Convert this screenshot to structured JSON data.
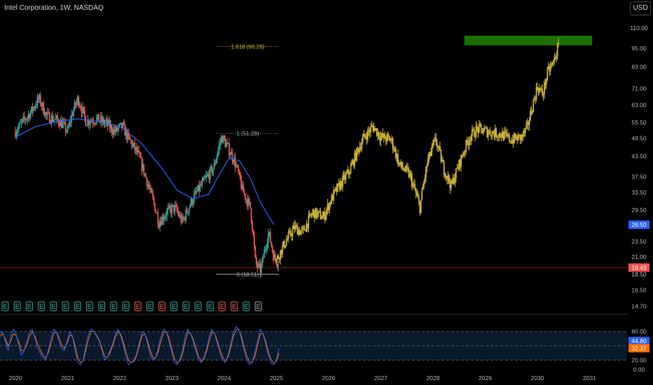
{
  "header": {
    "title": "Intel Corporation, 1W, NASDAQ",
    "currency": "USD"
  },
  "colors": {
    "up": "#26a69a",
    "down": "#ef5350",
    "projection": "#c9b037",
    "ma": "#2962ff",
    "target_zone": "#1b6f00",
    "fib": "#c9b037",
    "support": "#7a1f1f",
    "stoch_k": "#2962ff",
    "stoch_d": "#ff6d00"
  },
  "chart_data": [
    {
      "type": "candlestick",
      "x_axis": [
        "2020",
        "2021",
        "2022",
        "2023",
        "2024",
        "2025",
        "2026",
        "2027",
        "2028",
        "2029",
        "2030",
        "2031"
      ],
      "y_axis": [
        "110.00",
        "95.00",
        "83.00",
        "71.00",
        "63.00",
        "55.50",
        "49.50",
        "43.50",
        "37.50",
        "33.50",
        "29.50",
        "23.50",
        "21.00",
        "18.50",
        "16.50",
        "14.70"
      ],
      "y_scale": "log",
      "historical_path": [
        [
          2020.0,
          52
        ],
        [
          2020.3,
          60
        ],
        [
          2020.45,
          66
        ],
        [
          2020.6,
          58
        ],
        [
          2020.85,
          56
        ],
        [
          2021.0,
          52
        ],
        [
          2021.1,
          60
        ],
        [
          2021.2,
          66
        ],
        [
          2021.35,
          56
        ],
        [
          2021.55,
          57
        ],
        [
          2021.75,
          55
        ],
        [
          2021.9,
          52
        ],
        [
          2022.05,
          54
        ],
        [
          2022.15,
          50
        ],
        [
          2022.35,
          44
        ],
        [
          2022.55,
          35
        ],
        [
          2022.75,
          27
        ],
        [
          2022.9,
          29
        ],
        [
          2023.05,
          30
        ],
        [
          2023.2,
          27
        ],
        [
          2023.4,
          32
        ],
        [
          2023.55,
          35
        ],
        [
          2023.8,
          40
        ],
        [
          2023.95,
          50
        ],
        [
          2024.05,
          47
        ],
        [
          2024.2,
          42
        ],
        [
          2024.35,
          34
        ],
        [
          2024.5,
          30
        ],
        [
          2024.6,
          20
        ],
        [
          2024.7,
          19
        ],
        [
          2024.85,
          25
        ],
        [
          2024.95,
          21
        ],
        [
          2025.05,
          20
        ]
      ],
      "moving_average": [
        [
          2020.0,
          50
        ],
        [
          2020.4,
          54
        ],
        [
          2020.8,
          56
        ],
        [
          2021.2,
          57
        ],
        [
          2021.6,
          56
        ],
        [
          2022.0,
          54
        ],
        [
          2022.4,
          48
        ],
        [
          2022.8,
          40
        ],
        [
          2023.1,
          34
        ],
        [
          2023.4,
          32
        ],
        [
          2023.7,
          33
        ],
        [
          2023.9,
          38
        ],
        [
          2024.1,
          43
        ],
        [
          2024.3,
          42
        ],
        [
          2024.5,
          37
        ],
        [
          2024.7,
          31
        ],
        [
          2024.95,
          26.5
        ]
      ],
      "projection_path": [
        [
          2025.0,
          20.5
        ],
        [
          2025.15,
          23
        ],
        [
          2025.35,
          26
        ],
        [
          2025.5,
          25
        ],
        [
          2025.7,
          29
        ],
        [
          2025.9,
          28
        ],
        [
          2026.1,
          33
        ],
        [
          2026.4,
          39
        ],
        [
          2026.65,
          49
        ],
        [
          2026.85,
          54
        ],
        [
          2027.0,
          50
        ],
        [
          2027.2,
          49
        ],
        [
          2027.35,
          41
        ],
        [
          2027.55,
          38
        ],
        [
          2027.75,
          30
        ],
        [
          2027.9,
          42
        ],
        [
          2028.05,
          49
        ],
        [
          2028.2,
          40
        ],
        [
          2028.35,
          35
        ],
        [
          2028.5,
          41
        ],
        [
          2028.7,
          50
        ],
        [
          2028.85,
          53
        ],
        [
          2029.05,
          52
        ],
        [
          2029.3,
          51
        ],
        [
          2029.5,
          49
        ],
        [
          2029.7,
          50
        ],
        [
          2029.8,
          53
        ],
        [
          2029.9,
          62
        ],
        [
          2030.0,
          72
        ],
        [
          2030.1,
          68
        ],
        [
          2030.2,
          80
        ],
        [
          2030.3,
          85
        ],
        [
          2030.42,
          98
        ]
      ],
      "target_zone": {
        "x": [
          2028.6,
          2031.05
        ],
        "y": [
          97,
          104
        ]
      },
      "fib_levels": [
        {
          "ratio": 1.618,
          "value": 96.26,
          "label": "1.618 (96.26)"
        },
        {
          "ratio": 1,
          "value": 51.28,
          "label": "1 (51.28)"
        },
        {
          "ratio": 0,
          "value": 18.51,
          "label": "0 (18.51)"
        }
      ],
      "fib_x_range": [
        2023.85,
        2025.05
      ],
      "support_line": 19.43,
      "price_labels": [
        {
          "value": 26.5,
          "text": "26.50",
          "color": "#2962ff"
        },
        {
          "value": 19.43,
          "text": "19.43",
          "color": "#ef5350"
        }
      ],
      "earnings_markers": [
        {
          "label": "E",
          "kind": "up"
        },
        {
          "label": "E",
          "kind": "up"
        },
        {
          "label": "E",
          "kind": "up"
        },
        {
          "label": "E",
          "kind": "up"
        },
        {
          "label": "E",
          "kind": "up"
        },
        {
          "label": "E",
          "kind": "up"
        },
        {
          "label": "E",
          "kind": "up"
        },
        {
          "label": "E",
          "kind": "up"
        },
        {
          "label": "E",
          "kind": "up"
        },
        {
          "label": "E",
          "kind": "up"
        },
        {
          "label": "E",
          "kind": "up"
        },
        {
          "label": "E",
          "kind": "down"
        },
        {
          "label": "E",
          "kind": "up"
        },
        {
          "label": "E",
          "kind": "down"
        },
        {
          "label": "E",
          "kind": "up"
        },
        {
          "label": "E",
          "kind": "up"
        },
        {
          "label": "E",
          "kind": "up"
        },
        {
          "label": "E",
          "kind": "up"
        },
        {
          "label": "E",
          "kind": "down"
        },
        {
          "label": "E",
          "kind": "down"
        },
        {
          "label": "E",
          "kind": "up"
        },
        {
          "label": "E",
          "kind": "neutral"
        }
      ]
    },
    {
      "type": "line",
      "name": "stochastic",
      "y_axis": [
        "80.00",
        "20.00",
        "0.00"
      ],
      "levels": [
        80,
        50,
        20
      ],
      "ylim": [
        0,
        100
      ],
      "last_values": [
        {
          "text": "44.80",
          "color": "#2962ff"
        },
        {
          "text": "32.37",
          "color": "#ff6d00"
        }
      ],
      "k_values": [
        75,
        80,
        60,
        40,
        70,
        85,
        75,
        50,
        30,
        40,
        60,
        80,
        85,
        65,
        45,
        35,
        25,
        20,
        40,
        65,
        85,
        80,
        60,
        45,
        40,
        60,
        80,
        70,
        40,
        15,
        10,
        20,
        50,
        75,
        85,
        80,
        70,
        60,
        40,
        20,
        25,
        40,
        55,
        75,
        85,
        70,
        50,
        25,
        10,
        15,
        20,
        35,
        60,
        80,
        75,
        55,
        30,
        20,
        25,
        45,
        70,
        85,
        80,
        60,
        35,
        15,
        10,
        20,
        40,
        70,
        85,
        75,
        60,
        40,
        20,
        15,
        25,
        45,
        70,
        85,
        75,
        55,
        35,
        20,
        15,
        30,
        55,
        80,
        90,
        85,
        65,
        40,
        20,
        10,
        15,
        35,
        60,
        85,
        75,
        55,
        30,
        15,
        10,
        20,
        45
      ],
      "d_values": [
        70,
        75,
        65,
        50,
        60,
        75,
        72,
        58,
        40,
        40,
        52,
        70,
        80,
        70,
        55,
        42,
        30,
        25,
        35,
        55,
        75,
        80,
        68,
        52,
        45,
        55,
        72,
        70,
        50,
        25,
        15,
        18,
        40,
        65,
        80,
        80,
        72,
        62,
        45,
        28,
        25,
        35,
        50,
        68,
        80,
        74,
        58,
        35,
        18,
        15,
        18,
        30,
        52,
        72,
        75,
        60,
        40,
        25,
        24,
        38,
        60,
        78,
        80,
        66,
        44,
        24,
        14,
        17,
        32,
        58,
        78,
        76,
        64,
        46,
        28,
        18,
        22,
        38,
        60,
        78,
        76,
        60,
        42,
        26,
        18,
        26,
        46,
        70,
        84,
        84,
        70,
        48,
        28,
        16,
        15,
        28,
        50,
        75,
        76,
        60,
        38,
        22,
        14,
        17,
        34
      ]
    }
  ]
}
